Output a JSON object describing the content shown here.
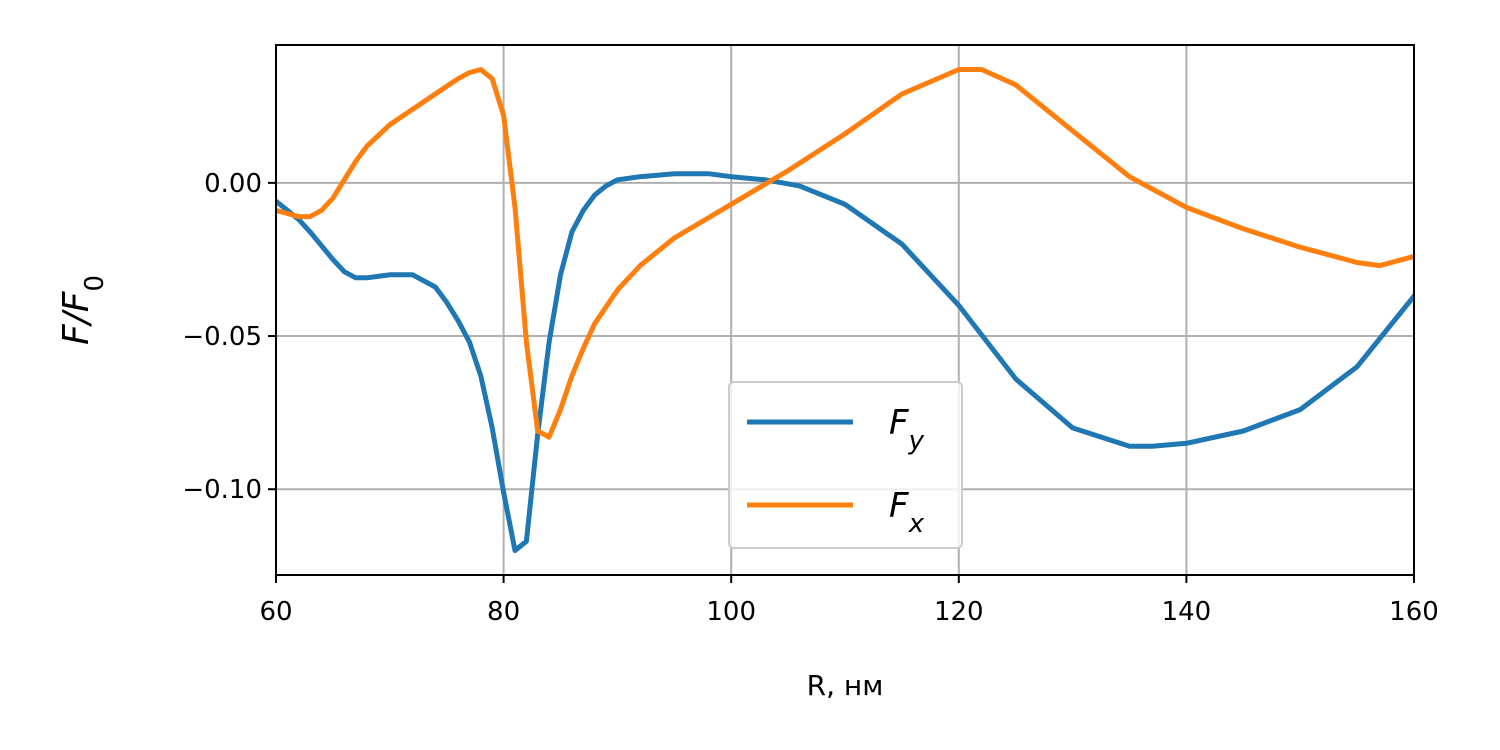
{
  "chart_data": {
    "type": "line",
    "xlabel": "R, нм",
    "ylabel": {
      "main": "F/F",
      "sub": "0"
    },
    "xlim": [
      60,
      160
    ],
    "ylim": [
      -0.128,
      0.045
    ],
    "xticks": [
      60,
      80,
      100,
      120,
      140,
      160
    ],
    "xtick_labels": [
      "60",
      "80",
      "100",
      "120",
      "140",
      "160"
    ],
    "yticks": [
      0.0,
      -0.05,
      -0.1
    ],
    "ytick_labels": [
      "0.00",
      "−0.05",
      "−0.10"
    ],
    "grid": true,
    "legend_position": "bottom-center",
    "series": [
      {
        "name": "F_y",
        "label_main": "F",
        "label_sub": "y",
        "color": "#1f77b4",
        "x": [
          60,
          62,
          63,
          65,
          66,
          67,
          68,
          70,
          71,
          72,
          74,
          75,
          76,
          77,
          78,
          79,
          80,
          81,
          82,
          83,
          84,
          85,
          86,
          87,
          88,
          89,
          90,
          92,
          95,
          98,
          100,
          103,
          106,
          110,
          115,
          120,
          125,
          130,
          135,
          137,
          140,
          145,
          150,
          155,
          160
        ],
        "y": [
          -0.006,
          -0.012,
          -0.016,
          -0.025,
          -0.029,
          -0.031,
          -0.031,
          -0.03,
          -0.03,
          -0.03,
          -0.034,
          -0.039,
          -0.045,
          -0.052,
          -0.063,
          -0.08,
          -0.101,
          -0.12,
          -0.117,
          -0.082,
          -0.052,
          -0.03,
          -0.016,
          -0.009,
          -0.004,
          -0.001,
          0.001,
          0.002,
          0.003,
          0.003,
          0.002,
          0.001,
          -0.001,
          -0.007,
          -0.02,
          -0.04,
          -0.064,
          -0.08,
          -0.086,
          -0.086,
          -0.085,
          -0.081,
          -0.074,
          -0.06,
          -0.037
        ]
      },
      {
        "name": "F_x",
        "label_main": "F",
        "label_sub": "x",
        "color": "#ff7f0e",
        "x": [
          60,
          62,
          63,
          64,
          65,
          66,
          67,
          68,
          70,
          72,
          74,
          76,
          77,
          78,
          79,
          80,
          81,
          82,
          83,
          84,
          85,
          86,
          87,
          88,
          90,
          92,
          95,
          100,
          105,
          110,
          115,
          120,
          122,
          125,
          130,
          135,
          140,
          145,
          150,
          155,
          157,
          160
        ],
        "y": [
          -0.009,
          -0.011,
          -0.011,
          -0.009,
          -0.005,
          0.001,
          0.007,
          0.012,
          0.019,
          0.024,
          0.029,
          0.034,
          0.036,
          0.037,
          0.034,
          0.022,
          -0.008,
          -0.052,
          -0.081,
          -0.083,
          -0.074,
          -0.063,
          -0.054,
          -0.046,
          -0.035,
          -0.027,
          -0.018,
          -0.007,
          0.004,
          0.016,
          0.029,
          0.037,
          0.037,
          0.032,
          0.017,
          0.002,
          -0.008,
          -0.015,
          -0.021,
          -0.026,
          -0.027,
          -0.024
        ]
      }
    ]
  }
}
